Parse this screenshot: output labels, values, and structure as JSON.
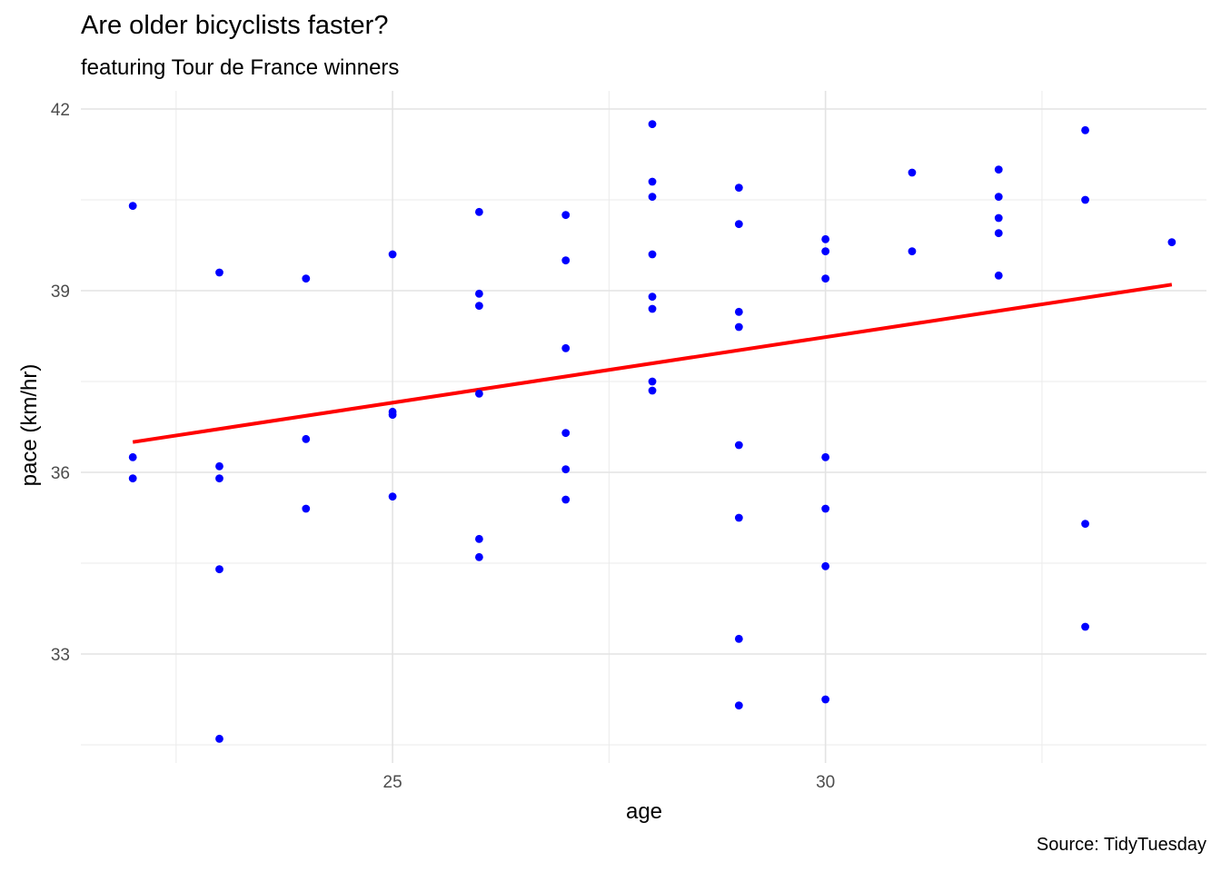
{
  "chart_data": {
    "type": "scatter",
    "title": "Are older bicyclists faster?",
    "subtitle": "featuring Tour de France winners",
    "caption": "Source: TidyTuesday",
    "xlabel": "age",
    "ylabel": "pace (km/hr)",
    "xlim": [
      21.4,
      34.4
    ],
    "ylim": [
      31.2,
      42.3
    ],
    "x_ticks": [
      25,
      30
    ],
    "y_ticks": [
      33,
      36,
      39,
      42
    ],
    "grid": true,
    "point_color": "#0000ff",
    "trend_color": "#ff0000",
    "trend_line": {
      "x": [
        22,
        34
      ],
      "y": [
        36.5,
        39.1
      ]
    },
    "points": [
      {
        "x": 22,
        "y": 40.4
      },
      {
        "x": 22,
        "y": 36.25
      },
      {
        "x": 22,
        "y": 35.9
      },
      {
        "x": 23,
        "y": 39.3
      },
      {
        "x": 23,
        "y": 36.1
      },
      {
        "x": 23,
        "y": 35.9
      },
      {
        "x": 23,
        "y": 34.4
      },
      {
        "x": 23,
        "y": 31.6
      },
      {
        "x": 24,
        "y": 39.2
      },
      {
        "x": 24,
        "y": 36.55
      },
      {
        "x": 24,
        "y": 35.4
      },
      {
        "x": 25,
        "y": 39.6
      },
      {
        "x": 25,
        "y": 37.0
      },
      {
        "x": 25,
        "y": 36.95
      },
      {
        "x": 25,
        "y": 35.6
      },
      {
        "x": 26,
        "y": 40.3
      },
      {
        "x": 26,
        "y": 38.95
      },
      {
        "x": 26,
        "y": 38.75
      },
      {
        "x": 26,
        "y": 37.3
      },
      {
        "x": 26,
        "y": 34.9
      },
      {
        "x": 26,
        "y": 34.6
      },
      {
        "x": 27,
        "y": 40.25
      },
      {
        "x": 27,
        "y": 39.5
      },
      {
        "x": 27,
        "y": 38.05
      },
      {
        "x": 27,
        "y": 36.65
      },
      {
        "x": 27,
        "y": 36.05
      },
      {
        "x": 27,
        "y": 35.55
      },
      {
        "x": 28,
        "y": 41.75
      },
      {
        "x": 28,
        "y": 40.8
      },
      {
        "x": 28,
        "y": 40.55
      },
      {
        "x": 28,
        "y": 39.6
      },
      {
        "x": 28,
        "y": 38.9
      },
      {
        "x": 28,
        "y": 38.7
      },
      {
        "x": 28,
        "y": 37.5
      },
      {
        "x": 28,
        "y": 37.35
      },
      {
        "x": 29,
        "y": 40.7
      },
      {
        "x": 29,
        "y": 40.1
      },
      {
        "x": 29,
        "y": 38.65
      },
      {
        "x": 29,
        "y": 38.4
      },
      {
        "x": 29,
        "y": 36.45
      },
      {
        "x": 29,
        "y": 35.25
      },
      {
        "x": 29,
        "y": 33.25
      },
      {
        "x": 29,
        "y": 32.15
      },
      {
        "x": 30,
        "y": 39.85
      },
      {
        "x": 30,
        "y": 39.65
      },
      {
        "x": 30,
        "y": 39.2
      },
      {
        "x": 30,
        "y": 36.25
      },
      {
        "x": 30,
        "y": 35.4
      },
      {
        "x": 30,
        "y": 34.45
      },
      {
        "x": 30,
        "y": 32.25
      },
      {
        "x": 31,
        "y": 40.95
      },
      {
        "x": 31,
        "y": 39.65
      },
      {
        "x": 32,
        "y": 41.0
      },
      {
        "x": 32,
        "y": 40.55
      },
      {
        "x": 32,
        "y": 40.2
      },
      {
        "x": 32,
        "y": 39.95
      },
      {
        "x": 32,
        "y": 39.25
      },
      {
        "x": 33,
        "y": 41.65
      },
      {
        "x": 33,
        "y": 40.5
      },
      {
        "x": 33,
        "y": 35.15
      },
      {
        "x": 33,
        "y": 33.45
      },
      {
        "x": 34,
        "y": 39.8
      }
    ]
  }
}
